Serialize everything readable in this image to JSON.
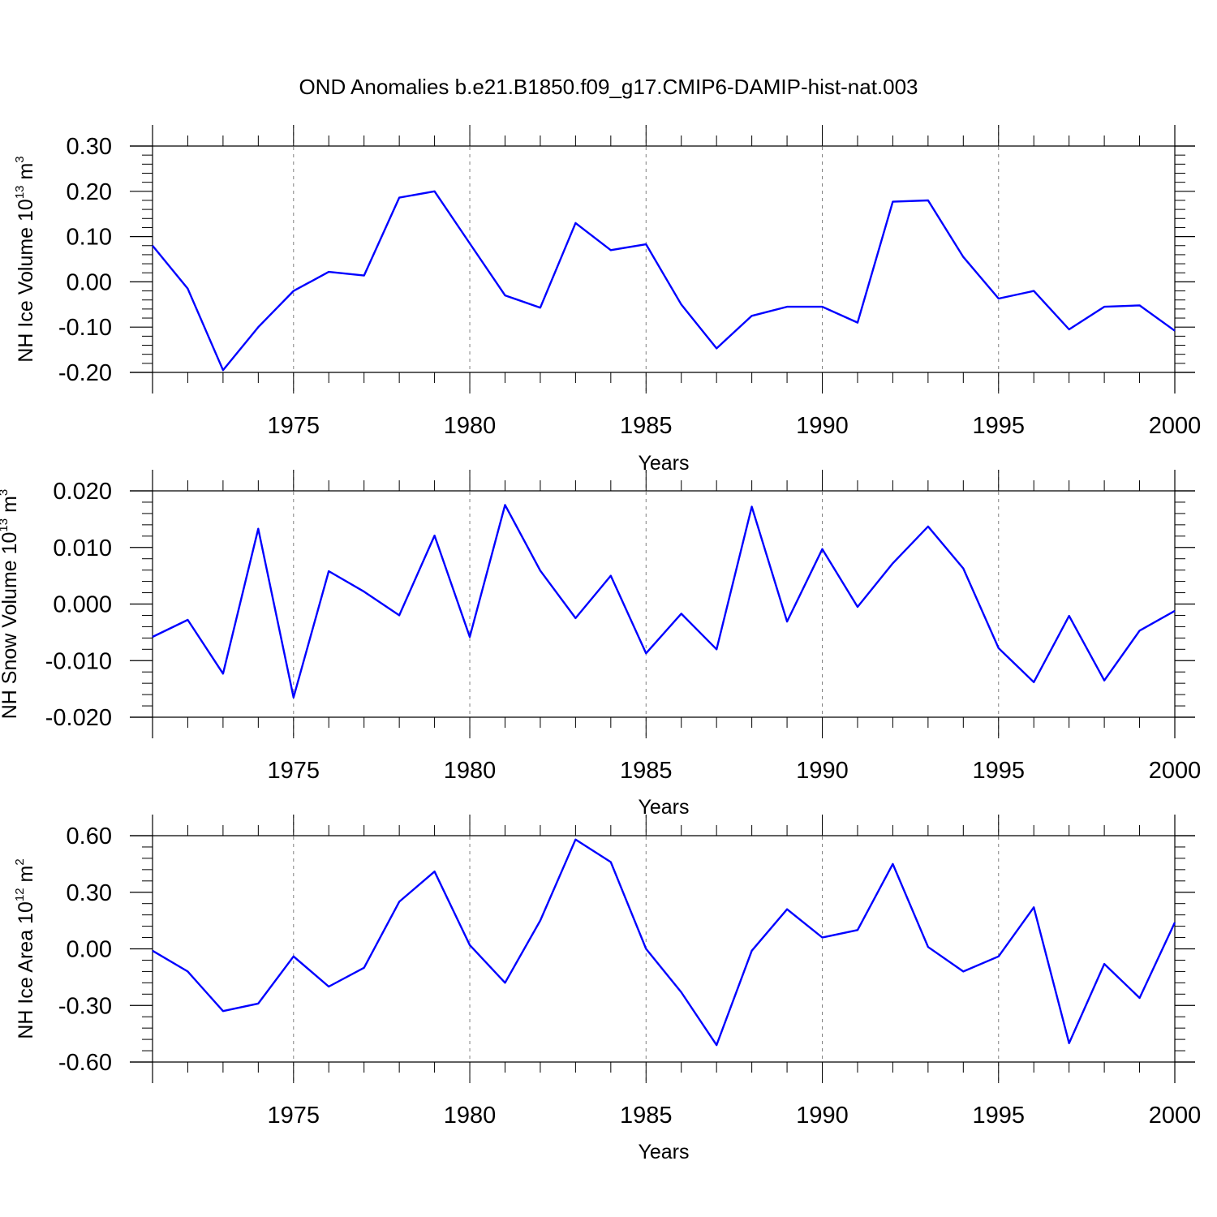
{
  "title": "OND Anomalies b.e21.B1850.f09_g17.CMIP6-DAMIP-hist-nat.003",
  "colors": {
    "line": "#0000ff",
    "axis": "#000000",
    "grid": "#808080"
  },
  "chart_data": [
    {
      "type": "line",
      "name": "ice-volume",
      "ylabel": {
        "base": "NH Ice Volume 10",
        "exp": "13",
        "unit": " m",
        "unit_exp": "3"
      },
      "xlabel": "Years",
      "xlim": [
        1971,
        2000
      ],
      "ylim": [
        -0.2,
        0.3
      ],
      "yticks": [
        -0.2,
        -0.1,
        0.0,
        0.1,
        0.2,
        0.3
      ],
      "ytick_labels": [
        "-0.20",
        "-0.10",
        "0.00",
        "0.10",
        "0.20",
        "0.30"
      ],
      "xticks": [
        1975,
        1980,
        1985,
        1990,
        1995,
        2000
      ],
      "xtick_labels": [
        "1975",
        "1980",
        "1985",
        "1990",
        "1995",
        "2000"
      ],
      "x": [
        1971,
        1972,
        1973,
        1974,
        1975,
        1976,
        1977,
        1978,
        1979,
        1980,
        1981,
        1982,
        1983,
        1984,
        1985,
        1986,
        1987,
        1988,
        1989,
        1990,
        1991,
        1992,
        1993,
        1994,
        1995,
        1996,
        1997,
        1998,
        1999,
        2000
      ],
      "values": [
        0.08,
        -0.015,
        -0.195,
        -0.1,
        -0.02,
        0.022,
        0.014,
        0.186,
        0.2,
        0.085,
        -0.03,
        -0.057,
        0.13,
        0.07,
        0.083,
        -0.05,
        -0.147,
        -0.075,
        -0.055,
        -0.055,
        -0.09,
        0.177,
        0.18,
        0.055,
        -0.037,
        -0.02,
        -0.105,
        -0.055,
        -0.052,
        -0.108
      ]
    },
    {
      "type": "line",
      "name": "snow-volume",
      "ylabel": {
        "base": "NH Snow Volume 10",
        "exp": "13",
        "unit": " m",
        "unit_exp": "3"
      },
      "xlabel": "Years",
      "xlim": [
        1971,
        2000
      ],
      "ylim": [
        -0.02,
        0.02
      ],
      "yticks": [
        -0.02,
        -0.01,
        0.0,
        0.01,
        0.02
      ],
      "ytick_labels": [
        "-0.020",
        "-0.010",
        "0.000",
        "0.010",
        "0.020"
      ],
      "xticks": [
        1975,
        1980,
        1985,
        1990,
        1995,
        2000
      ],
      "xtick_labels": [
        "1975",
        "1980",
        "1985",
        "1990",
        "1995",
        "2000"
      ],
      "x": [
        1971,
        1972,
        1973,
        1974,
        1975,
        1976,
        1977,
        1978,
        1979,
        1980,
        1981,
        1982,
        1983,
        1984,
        1985,
        1986,
        1987,
        1988,
        1989,
        1990,
        1991,
        1992,
        1993,
        1994,
        1995,
        1996,
        1997,
        1998,
        1999,
        2000
      ],
      "values": [
        -0.0058,
        -0.0028,
        -0.0123,
        0.0133,
        -0.0165,
        0.0058,
        0.0022,
        -0.002,
        0.0121,
        -0.0058,
        0.0175,
        0.0059,
        -0.0025,
        0.005,
        -0.0087,
        -0.0017,
        -0.008,
        0.0172,
        -0.0031,
        0.0097,
        -0.0005,
        0.0072,
        0.0137,
        0.0063,
        -0.0078,
        -0.0138,
        -0.0021,
        -0.0135,
        -0.0047,
        -0.0012
      ]
    },
    {
      "type": "line",
      "name": "ice-area",
      "ylabel": {
        "base": "NH Ice Area 10",
        "exp": "12",
        "unit": " m",
        "unit_exp": "2"
      },
      "xlabel": "Years",
      "xlim": [
        1971,
        2000
      ],
      "ylim": [
        -0.6,
        0.6
      ],
      "yticks": [
        -0.6,
        -0.3,
        0.0,
        0.3,
        0.6
      ],
      "ytick_labels": [
        "-0.60",
        "-0.30",
        "0.00",
        "0.30",
        "0.60"
      ],
      "xticks": [
        1975,
        1980,
        1985,
        1990,
        1995,
        2000
      ],
      "xtick_labels": [
        "1975",
        "1980",
        "1985",
        "1990",
        "1995",
        "2000"
      ],
      "x": [
        1971,
        1972,
        1973,
        1974,
        1975,
        1976,
        1977,
        1978,
        1979,
        1980,
        1981,
        1982,
        1983,
        1984,
        1985,
        1986,
        1987,
        1988,
        1989,
        1990,
        1991,
        1992,
        1993,
        1994,
        1995,
        1996,
        1997,
        1998,
        1999,
        2000
      ],
      "values": [
        -0.01,
        -0.12,
        -0.33,
        -0.29,
        -0.04,
        -0.2,
        -0.1,
        0.25,
        0.41,
        0.02,
        -0.18,
        0.15,
        0.58,
        0.46,
        0.0,
        -0.23,
        -0.51,
        -0.01,
        0.21,
        0.06,
        0.1,
        0.45,
        0.01,
        -0.12,
        -0.04,
        0.22,
        -0.5,
        -0.08,
        -0.26,
        0.14
      ]
    }
  ]
}
